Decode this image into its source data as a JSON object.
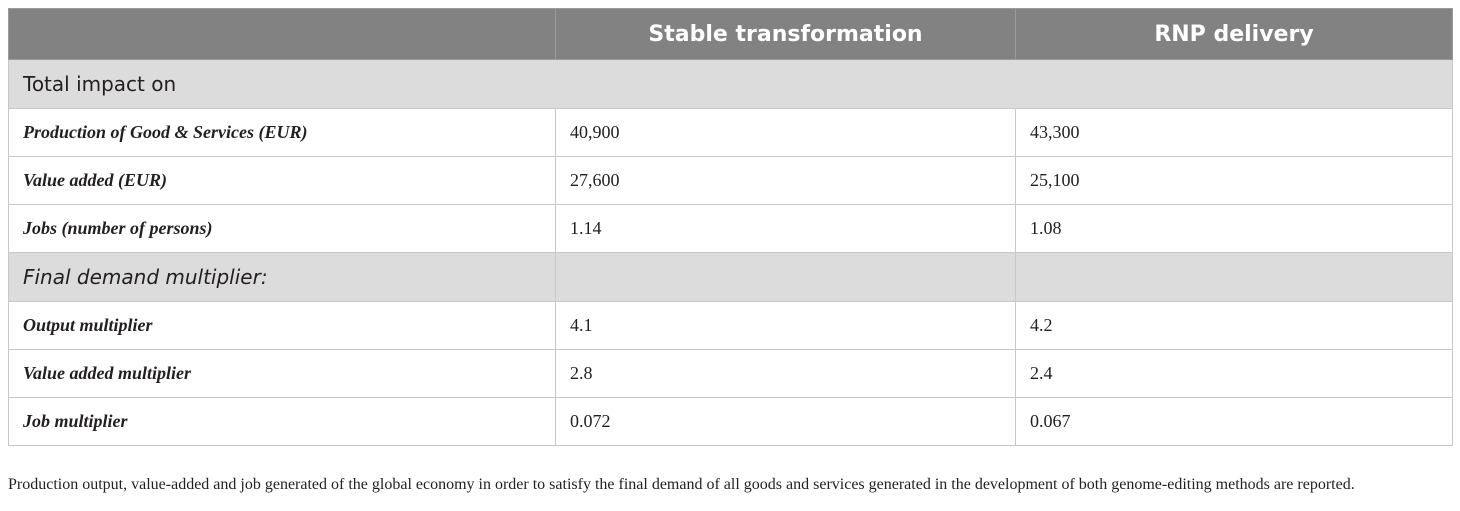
{
  "table": {
    "headers": [
      "",
      "Stable transformation",
      "RNP delivery"
    ],
    "sections": [
      {
        "title": "Total impact on",
        "italic": false,
        "rows": [
          {
            "label": "Production of Good & Services (EUR)",
            "stable": "40,900",
            "rnp": "43,300"
          },
          {
            "label": "Value added (EUR)",
            "stable": "27,600",
            "rnp": "25,100"
          },
          {
            "label": "Jobs (number of persons)",
            "stable": "1.14",
            "rnp": "1.08"
          }
        ]
      },
      {
        "title": "Final demand multiplier:",
        "italic": true,
        "rows": [
          {
            "label": "Output multiplier",
            "stable": "4.1",
            "rnp": "4.2"
          },
          {
            "label": "Value added multiplier",
            "stable": "2.8",
            "rnp": "2.4"
          },
          {
            "label": "Job multiplier",
            "stable": "0.072",
            "rnp": "0.067"
          }
        ]
      }
    ]
  },
  "caption": "Production output, value-added and job generated of the global economy in order to satisfy the final demand of all goods and services generated in the development of both genome-editing methods are reported.",
  "colors": {
    "header_bg": "#828282",
    "section_bg": "#dcdcdc",
    "border": "#c8c8c8"
  }
}
